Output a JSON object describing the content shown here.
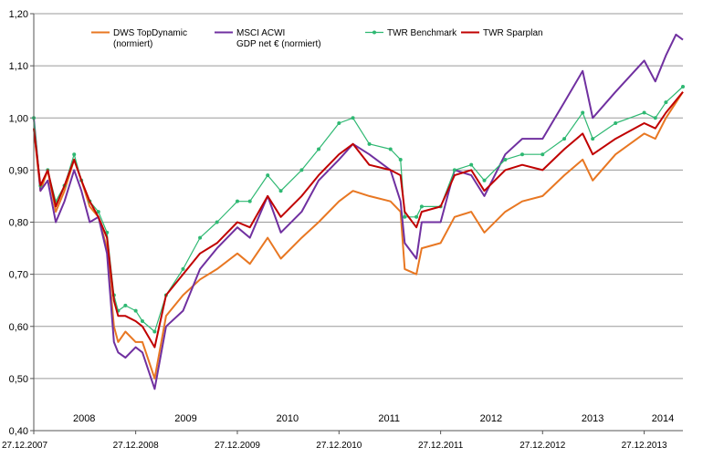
{
  "chart_data": {
    "type": "line",
    "ylim": [
      0.4,
      1.2
    ],
    "y_ticks": [
      "0,40",
      "0,50",
      "0,60",
      "0,70",
      "0,80",
      "0,90",
      "1,00",
      "1,10",
      "1,20"
    ],
    "x_ticks": [
      "27.12.2007",
      "27.12.2008",
      "27.12.2009",
      "27.12.2010",
      "27.12.2011",
      "27.12.2012",
      "27.12.2013"
    ],
    "year_labels": [
      "2008",
      "2009",
      "2010",
      "2011",
      "2012",
      "2013",
      "2014"
    ],
    "x_range": [
      "2007-12-27",
      "2014-05-15"
    ],
    "grid": "horizontal",
    "legend_placement": "top",
    "series": [
      {
        "name": "DWS TopDynamic (normiert)",
        "legend_line1": "DWS TopDynamic",
        "legend_line2": "(normiert)",
        "color": "#e87722",
        "points": [
          [
            "2007-12-27",
            0.98
          ],
          [
            "2008-01-20",
            0.86
          ],
          [
            "2008-02-15",
            0.9
          ],
          [
            "2008-03-15",
            0.82
          ],
          [
            "2008-04-15",
            0.86
          ],
          [
            "2008-05-20",
            0.92
          ],
          [
            "2008-06-15",
            0.88
          ],
          [
            "2008-07-15",
            0.83
          ],
          [
            "2008-08-15",
            0.81
          ],
          [
            "2008-09-15",
            0.75
          ],
          [
            "2008-10-10",
            0.6
          ],
          [
            "2008-10-25",
            0.57
          ],
          [
            "2008-11-20",
            0.59
          ],
          [
            "2008-12-27",
            0.57
          ],
          [
            "2009-01-20",
            0.57
          ],
          [
            "2009-03-05",
            0.5
          ],
          [
            "2009-04-15",
            0.62
          ],
          [
            "2009-06-15",
            0.66
          ],
          [
            "2009-08-15",
            0.69
          ],
          [
            "2009-10-15",
            0.71
          ],
          [
            "2009-12-27",
            0.74
          ],
          [
            "2010-02-10",
            0.72
          ],
          [
            "2010-04-15",
            0.77
          ],
          [
            "2010-06-01",
            0.73
          ],
          [
            "2010-08-15",
            0.77
          ],
          [
            "2010-10-15",
            0.8
          ],
          [
            "2010-12-27",
            0.84
          ],
          [
            "2011-02-15",
            0.86
          ],
          [
            "2011-04-15",
            0.85
          ],
          [
            "2011-06-30",
            0.84
          ],
          [
            "2011-08-05",
            0.82
          ],
          [
            "2011-08-20",
            0.71
          ],
          [
            "2011-10-01",
            0.7
          ],
          [
            "2011-10-20",
            0.75
          ],
          [
            "2011-12-27",
            0.76
          ],
          [
            "2012-02-15",
            0.81
          ],
          [
            "2012-04-15",
            0.82
          ],
          [
            "2012-06-01",
            0.78
          ],
          [
            "2012-08-15",
            0.82
          ],
          [
            "2012-10-15",
            0.84
          ],
          [
            "2012-12-27",
            0.85
          ],
          [
            "2013-03-15",
            0.89
          ],
          [
            "2013-05-20",
            0.92
          ],
          [
            "2013-06-25",
            0.88
          ],
          [
            "2013-09-15",
            0.93
          ],
          [
            "2013-12-27",
            0.97
          ],
          [
            "2014-02-05",
            0.96
          ],
          [
            "2014-03-15",
            1.0
          ],
          [
            "2014-05-15",
            1.05
          ]
        ]
      },
      {
        "name": "MSCI ACWI GDP net € (normiert)",
        "legend_line1": "MSCI ACWI",
        "legend_line2": "GDP net € (normiert)",
        "color": "#7030a0",
        "points": [
          [
            "2007-12-27",
            1.0
          ],
          [
            "2008-01-20",
            0.86
          ],
          [
            "2008-02-15",
            0.88
          ],
          [
            "2008-03-15",
            0.8
          ],
          [
            "2008-04-15",
            0.84
          ],
          [
            "2008-05-20",
            0.9
          ],
          [
            "2008-06-15",
            0.86
          ],
          [
            "2008-07-15",
            0.8
          ],
          [
            "2008-08-15",
            0.81
          ],
          [
            "2008-09-15",
            0.74
          ],
          [
            "2008-10-10",
            0.57
          ],
          [
            "2008-10-25",
            0.55
          ],
          [
            "2008-11-20",
            0.54
          ],
          [
            "2008-12-27",
            0.56
          ],
          [
            "2009-01-20",
            0.55
          ],
          [
            "2009-03-05",
            0.48
          ],
          [
            "2009-04-15",
            0.6
          ],
          [
            "2009-06-15",
            0.63
          ],
          [
            "2009-08-15",
            0.71
          ],
          [
            "2009-10-15",
            0.75
          ],
          [
            "2009-12-27",
            0.79
          ],
          [
            "2010-02-10",
            0.77
          ],
          [
            "2010-04-15",
            0.85
          ],
          [
            "2010-06-01",
            0.78
          ],
          [
            "2010-08-15",
            0.82
          ],
          [
            "2010-10-15",
            0.88
          ],
          [
            "2010-12-27",
            0.92
          ],
          [
            "2011-02-15",
            0.95
          ],
          [
            "2011-04-15",
            0.93
          ],
          [
            "2011-06-30",
            0.9
          ],
          [
            "2011-08-05",
            0.84
          ],
          [
            "2011-08-20",
            0.76
          ],
          [
            "2011-10-01",
            0.73
          ],
          [
            "2011-10-20",
            0.8
          ],
          [
            "2011-12-27",
            0.8
          ],
          [
            "2012-02-15",
            0.9
          ],
          [
            "2012-04-15",
            0.89
          ],
          [
            "2012-06-01",
            0.85
          ],
          [
            "2012-08-15",
            0.93
          ],
          [
            "2012-10-15",
            0.96
          ],
          [
            "2012-12-27",
            0.96
          ],
          [
            "2013-03-15",
            1.03
          ],
          [
            "2013-05-20",
            1.09
          ],
          [
            "2013-06-25",
            1.0
          ],
          [
            "2013-09-15",
            1.05
          ],
          [
            "2013-12-27",
            1.11
          ],
          [
            "2014-02-05",
            1.07
          ],
          [
            "2014-03-15",
            1.12
          ],
          [
            "2014-04-20",
            1.16
          ],
          [
            "2014-05-15",
            1.15
          ]
        ]
      },
      {
        "name": "TWR Benchmark",
        "legend_line1": "TWR Benchmark",
        "legend_line2": "",
        "color": "#2eb872",
        "markers": true,
        "points": [
          [
            "2007-12-27",
            1.0
          ],
          [
            "2008-01-20",
            0.87
          ],
          [
            "2008-02-15",
            0.9
          ],
          [
            "2008-03-15",
            0.84
          ],
          [
            "2008-04-15",
            0.87
          ],
          [
            "2008-05-20",
            0.93
          ],
          [
            "2008-06-15",
            0.88
          ],
          [
            "2008-07-15",
            0.84
          ],
          [
            "2008-08-15",
            0.82
          ],
          [
            "2008-09-15",
            0.78
          ],
          [
            "2008-10-10",
            0.66
          ],
          [
            "2008-10-25",
            0.63
          ],
          [
            "2008-11-20",
            0.64
          ],
          [
            "2008-12-27",
            0.63
          ],
          [
            "2009-01-20",
            0.61
          ],
          [
            "2009-03-05",
            0.59
          ],
          [
            "2009-04-15",
            0.66
          ],
          [
            "2009-06-15",
            0.71
          ],
          [
            "2009-08-15",
            0.77
          ],
          [
            "2009-10-15",
            0.8
          ],
          [
            "2009-12-27",
            0.84
          ],
          [
            "2010-02-10",
            0.84
          ],
          [
            "2010-04-15",
            0.89
          ],
          [
            "2010-06-01",
            0.86
          ],
          [
            "2010-08-15",
            0.9
          ],
          [
            "2010-10-15",
            0.94
          ],
          [
            "2010-12-27",
            0.99
          ],
          [
            "2011-02-15",
            1.0
          ],
          [
            "2011-04-15",
            0.95
          ],
          [
            "2011-06-30",
            0.94
          ],
          [
            "2011-08-05",
            0.92
          ],
          [
            "2011-08-20",
            0.81
          ],
          [
            "2011-10-01",
            0.81
          ],
          [
            "2011-10-20",
            0.83
          ],
          [
            "2011-12-27",
            0.83
          ],
          [
            "2012-02-15",
            0.9
          ],
          [
            "2012-04-15",
            0.91
          ],
          [
            "2012-06-01",
            0.88
          ],
          [
            "2012-08-15",
            0.92
          ],
          [
            "2012-10-15",
            0.93
          ],
          [
            "2012-12-27",
            0.93
          ],
          [
            "2013-03-15",
            0.96
          ],
          [
            "2013-05-20",
            1.01
          ],
          [
            "2013-06-25",
            0.96
          ],
          [
            "2013-09-15",
            0.99
          ],
          [
            "2013-12-27",
            1.01
          ],
          [
            "2014-02-05",
            1.0
          ],
          [
            "2014-03-15",
            1.03
          ],
          [
            "2014-05-15",
            1.06
          ]
        ]
      },
      {
        "name": "TWR Sparplan",
        "legend_line1": "TWR Sparplan",
        "legend_line2": "",
        "color": "#c00000",
        "points": [
          [
            "2007-12-27",
            0.98
          ],
          [
            "2008-01-20",
            0.87
          ],
          [
            "2008-02-15",
            0.9
          ],
          [
            "2008-03-15",
            0.83
          ],
          [
            "2008-04-15",
            0.87
          ],
          [
            "2008-05-20",
            0.92
          ],
          [
            "2008-06-15",
            0.88
          ],
          [
            "2008-07-15",
            0.84
          ],
          [
            "2008-08-15",
            0.81
          ],
          [
            "2008-09-15",
            0.77
          ],
          [
            "2008-10-10",
            0.65
          ],
          [
            "2008-10-25",
            0.62
          ],
          [
            "2008-11-20",
            0.62
          ],
          [
            "2008-12-27",
            0.61
          ],
          [
            "2009-01-20",
            0.6
          ],
          [
            "2009-03-05",
            0.56
          ],
          [
            "2009-04-15",
            0.66
          ],
          [
            "2009-06-15",
            0.7
          ],
          [
            "2009-08-15",
            0.74
          ],
          [
            "2009-10-15",
            0.76
          ],
          [
            "2009-12-27",
            0.8
          ],
          [
            "2010-02-10",
            0.79
          ],
          [
            "2010-04-15",
            0.85
          ],
          [
            "2010-06-01",
            0.81
          ],
          [
            "2010-08-15",
            0.85
          ],
          [
            "2010-10-15",
            0.89
          ],
          [
            "2010-12-27",
            0.93
          ],
          [
            "2011-02-15",
            0.95
          ],
          [
            "2011-04-15",
            0.91
          ],
          [
            "2011-06-30",
            0.9
          ],
          [
            "2011-08-05",
            0.89
          ],
          [
            "2011-08-20",
            0.82
          ],
          [
            "2011-10-01",
            0.79
          ],
          [
            "2011-10-20",
            0.82
          ],
          [
            "2011-12-27",
            0.83
          ],
          [
            "2012-02-15",
            0.89
          ],
          [
            "2012-04-15",
            0.9
          ],
          [
            "2012-06-01",
            0.86
          ],
          [
            "2012-08-15",
            0.9
          ],
          [
            "2012-10-15",
            0.91
          ],
          [
            "2012-12-27",
            0.9
          ],
          [
            "2013-03-15",
            0.94
          ],
          [
            "2013-05-20",
            0.97
          ],
          [
            "2013-06-25",
            0.93
          ],
          [
            "2013-09-15",
            0.96
          ],
          [
            "2013-12-27",
            0.99
          ],
          [
            "2014-02-05",
            0.98
          ],
          [
            "2014-03-15",
            1.01
          ],
          [
            "2014-05-15",
            1.05
          ]
        ]
      }
    ]
  }
}
